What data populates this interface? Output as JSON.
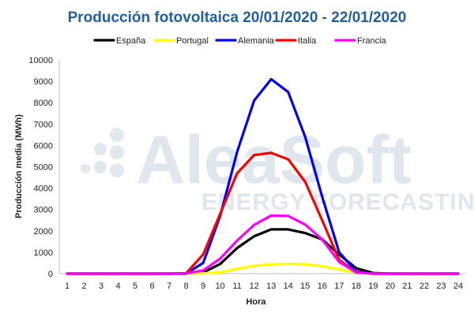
{
  "chart_data": {
    "type": "line",
    "title": "Producción fotovoltaica 20/01/2020 - 22/01/2020",
    "xlabel": "Hora",
    "ylabel": "Producción media (MWh)",
    "ylim": [
      0,
      10000
    ],
    "yticks": [
      0,
      1000,
      2000,
      3000,
      4000,
      5000,
      6000,
      7000,
      8000,
      9000,
      10000
    ],
    "x": [
      1,
      2,
      3,
      4,
      5,
      6,
      7,
      8,
      9,
      10,
      11,
      12,
      13,
      14,
      15,
      16,
      17,
      18,
      19,
      20,
      21,
      22,
      23,
      24
    ],
    "legend_position": "top",
    "grid": false,
    "series": [
      {
        "name": "España",
        "color": "#000000",
        "values": [
          0,
          0,
          0,
          0,
          0,
          0,
          0,
          0,
          60,
          450,
          1200,
          1750,
          2070,
          2070,
          1900,
          1600,
          900,
          250,
          30,
          0,
          0,
          0,
          0,
          0
        ]
      },
      {
        "name": "Portugal",
        "color": "#ffff00",
        "values": [
          0,
          0,
          0,
          0,
          0,
          0,
          0,
          0,
          10,
          60,
          220,
          370,
          430,
          460,
          440,
          350,
          200,
          50,
          0,
          0,
          0,
          0,
          0,
          0
        ]
      },
      {
        "name": "Alemania",
        "color": "#0000ff",
        "values": [
          0,
          0,
          0,
          0,
          0,
          0,
          0,
          0,
          500,
          2700,
          5700,
          8100,
          9100,
          8500,
          6400,
          3600,
          1000,
          100,
          0,
          0,
          0,
          0,
          0,
          0
        ]
      },
      {
        "name": "Italia",
        "color": "#ff0000",
        "values": [
          0,
          0,
          0,
          0,
          0,
          0,
          0,
          20,
          900,
          2800,
          4700,
          5550,
          5650,
          5350,
          4300,
          2500,
          650,
          60,
          0,
          0,
          0,
          0,
          0,
          0
        ]
      },
      {
        "name": "Francia",
        "color": "#ff00ff",
        "values": [
          0,
          0,
          0,
          0,
          0,
          0,
          0,
          10,
          150,
          700,
          1550,
          2280,
          2720,
          2700,
          2300,
          1600,
          550,
          60,
          0,
          0,
          0,
          0,
          0,
          0
        ]
      }
    ]
  },
  "watermark": {
    "brand": "AleaSoft",
    "tagline": "ENERGY FORECASTING"
  }
}
